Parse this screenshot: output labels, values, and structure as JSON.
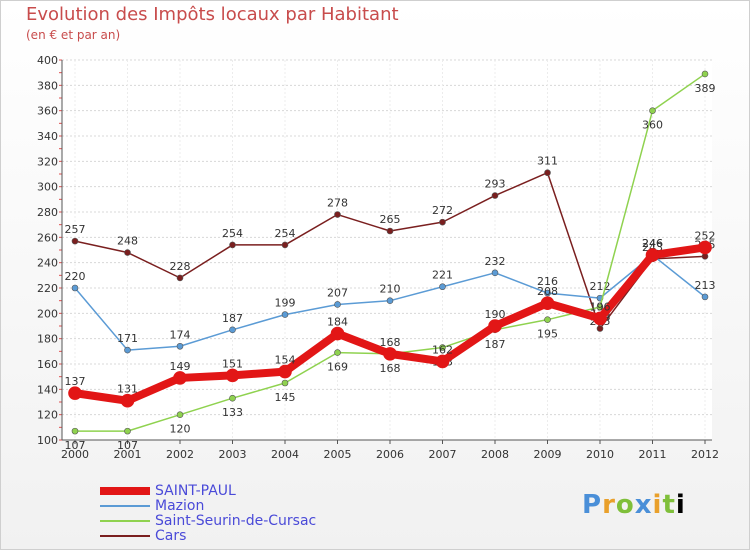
{
  "chart_data": {
    "type": "line",
    "title": "Evolution des Impôts locaux par Habitant",
    "subtitle": "(en € et par an)",
    "ylim": [
      100,
      400
    ],
    "yticks": [
      100,
      120,
      140,
      160,
      180,
      200,
      220,
      240,
      260,
      280,
      300,
      320,
      340,
      360,
      380,
      400
    ],
    "x": [
      2000,
      2001,
      2002,
      2003,
      2004,
      2005,
      2006,
      2007,
      2008,
      2009,
      2010,
      2011,
      2012
    ],
    "series": [
      {
        "name": "Cars",
        "color": "#7a1f1f",
        "width": 1.5,
        "labels_above": true,
        "values": [
          257,
          248,
          228,
          254,
          254,
          278,
          265,
          272,
          293,
          311,
          188,
          243,
          245
        ]
      },
      {
        "name": "Mazion",
        "color": "#5b9bd5",
        "width": 1.5,
        "labels_above": true,
        "values": [
          220,
          171,
          174,
          187,
          199,
          207,
          210,
          221,
          232,
          216,
          212,
          246,
          213
        ]
      },
      {
        "name": "Saint-Seurin-de-Cursac",
        "color": "#8fd24f",
        "width": 1.5,
        "labels_above": false,
        "values": [
          107,
          107,
          120,
          133,
          145,
          169,
          168,
          173,
          187,
          195,
          205,
          360,
          389
        ]
      },
      {
        "name": "SAINT-PAUL",
        "color": "#e21616",
        "width": 8,
        "labels_above": true,
        "values": [
          137,
          131,
          149,
          151,
          154,
          184,
          168,
          162,
          190,
          208,
          196,
          246,
          252
        ]
      }
    ]
  },
  "legend": [
    {
      "label": "SAINT-PAUL",
      "color": "#e21616",
      "thickness": 8
    },
    {
      "label": "Mazion",
      "color": "#5b9bd5",
      "thickness": 2
    },
    {
      "label": "Saint-Seurin-de-Cursac",
      "color": "#8fd24f",
      "thickness": 2
    },
    {
      "label": "Cars",
      "color": "#7a1f1f",
      "thickness": 2
    }
  ],
  "logo": {
    "letters": [
      "P",
      "r",
      "o",
      "x",
      "i",
      "t",
      "i"
    ]
  }
}
